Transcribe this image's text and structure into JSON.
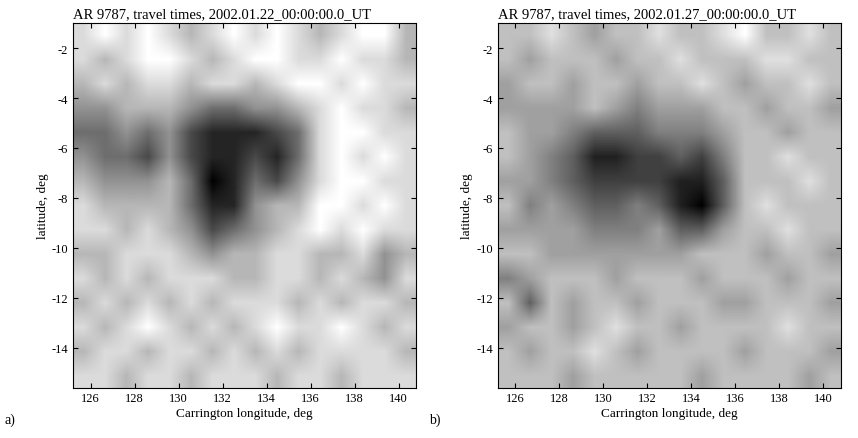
{
  "chart_data": [
    {
      "type": "heatmap",
      "title": "AR 9787, travel times, 2002.01.22_00:00:00.0_UT",
      "x_label": "Carrington longitude, deg",
      "y_label": "latitude, deg",
      "panel_label": "a)",
      "color": "gray",
      "xlim": [
        125.2,
        140.8
      ],
      "ylim": [
        -15.6,
        -1.0
      ],
      "xticks": [
        126,
        128,
        130,
        132,
        134,
        136,
        138,
        140
      ],
      "yticks": [
        -14,
        -12,
        -10,
        -8,
        -6,
        -4,
        -2
      ],
      "cells": [
        [
          6,
          7,
          6,
          7,
          6,
          5,
          6,
          7,
          6,
          7,
          6,
          5,
          6,
          7,
          7,
          5
        ],
        [
          6,
          5,
          6,
          7,
          7,
          6,
          5,
          6,
          7,
          7,
          6,
          6,
          7,
          6,
          6,
          5
        ],
        [
          5,
          6,
          5,
          6,
          6,
          5,
          6,
          6,
          5,
          6,
          7,
          7,
          6,
          7,
          6,
          6
        ],
        [
          4,
          4,
          5,
          5,
          5,
          4,
          3,
          3,
          4,
          4,
          5,
          6,
          7,
          6,
          6,
          5
        ],
        [
          3,
          3,
          4,
          3,
          4,
          2,
          1,
          1,
          1,
          2,
          3,
          6,
          7,
          7,
          6,
          6
        ],
        [
          4,
          3,
          3,
          2,
          4,
          2,
          1,
          1,
          2,
          1,
          3,
          6,
          7,
          6,
          7,
          6
        ],
        [
          5,
          4,
          4,
          4,
          5,
          3,
          0,
          1,
          3,
          2,
          4,
          6,
          7,
          7,
          6,
          6
        ],
        [
          6,
          5,
          5,
          5,
          5,
          3,
          1,
          1,
          4,
          5,
          5,
          7,
          7,
          6,
          7,
          6
        ],
        [
          6,
          6,
          5,
          6,
          5,
          4,
          2,
          3,
          4,
          5,
          6,
          7,
          6,
          7,
          6,
          6
        ],
        [
          5,
          5,
          6,
          6,
          6,
          5,
          4,
          5,
          5,
          6,
          6,
          5,
          5,
          6,
          4,
          5
        ],
        [
          6,
          5,
          6,
          5,
          6,
          6,
          6,
          5,
          5,
          6,
          6,
          5,
          6,
          5,
          4,
          6
        ],
        [
          5,
          6,
          5,
          6,
          5,
          6,
          5,
          6,
          6,
          6,
          5,
          6,
          5,
          6,
          6,
          5
        ],
        [
          6,
          5,
          6,
          7,
          6,
          5,
          6,
          5,
          6,
          7,
          6,
          6,
          7,
          6,
          5,
          6
        ],
        [
          5,
          6,
          6,
          5,
          6,
          6,
          5,
          6,
          5,
          6,
          5,
          6,
          6,
          6,
          6,
          5
        ],
        [
          6,
          6,
          5,
          6,
          6,
          5,
          6,
          6,
          6,
          5,
          6,
          6,
          5,
          6,
          6,
          6
        ]
      ]
    },
    {
      "type": "heatmap",
      "title": "AR 9787, travel times, 2002.01.27_00:00:00.0_UT",
      "x_label": "Carrington longitude, deg",
      "y_label": "latitude, deg",
      "panel_label": "b)",
      "color": "gray",
      "xlim": [
        125.2,
        140.8
      ],
      "ylim": [
        -15.6,
        -1.0
      ],
      "xticks": [
        126,
        128,
        130,
        132,
        134,
        136,
        138,
        140
      ],
      "yticks": [
        -14,
        -12,
        -10,
        -8,
        -6,
        -4,
        -2
      ],
      "cells": [
        [
          6,
          6,
          7,
          6,
          5,
          6,
          6,
          7,
          6,
          6,
          7,
          8,
          6,
          6,
          7,
          6
        ],
        [
          6,
          5,
          6,
          6,
          6,
          5,
          6,
          6,
          7,
          6,
          6,
          6,
          7,
          7,
          6,
          6
        ],
        [
          5,
          6,
          6,
          5,
          6,
          6,
          5,
          6,
          6,
          7,
          6,
          5,
          6,
          6,
          7,
          6
        ],
        [
          5,
          5,
          5,
          5,
          6,
          5,
          4,
          5,
          5,
          5,
          6,
          6,
          5,
          6,
          6,
          5
        ],
        [
          6,
          5,
          5,
          4,
          3,
          3,
          3,
          4,
          4,
          4,
          5,
          6,
          6,
          5,
          6,
          6
        ],
        [
          6,
          5,
          4,
          3,
          1,
          1,
          2,
          2,
          3,
          2,
          4,
          6,
          6,
          7,
          6,
          6
        ],
        [
          5,
          5,
          4,
          3,
          2,
          2,
          2,
          2,
          1,
          1,
          3,
          6,
          6,
          6,
          7,
          6
        ],
        [
          6,
          4,
          5,
          4,
          3,
          3,
          4,
          3,
          1,
          0,
          3,
          6,
          7,
          6,
          6,
          6
        ],
        [
          5,
          5,
          5,
          5,
          4,
          4,
          4,
          5,
          3,
          3,
          5,
          6,
          6,
          7,
          6,
          6
        ],
        [
          6,
          6,
          5,
          5,
          5,
          5,
          5,
          5,
          5,
          6,
          6,
          6,
          5,
          6,
          6,
          5
        ],
        [
          4,
          5,
          6,
          6,
          6,
          5,
          6,
          6,
          6,
          5,
          6,
          6,
          6,
          5,
          6,
          6
        ],
        [
          6,
          3,
          6,
          5,
          6,
          6,
          5,
          6,
          6,
          6,
          5,
          5,
          6,
          6,
          6,
          5
        ],
        [
          5,
          6,
          6,
          5,
          6,
          7,
          6,
          6,
          5,
          6,
          6,
          6,
          6,
          7,
          6,
          6
        ],
        [
          6,
          5,
          6,
          6,
          7,
          6,
          5,
          6,
          6,
          6,
          6,
          5,
          6,
          6,
          6,
          5
        ],
        [
          6,
          6,
          6,
          5,
          6,
          6,
          6,
          6,
          6,
          5,
          6,
          6,
          6,
          6,
          5,
          6
        ]
      ]
    }
  ]
}
